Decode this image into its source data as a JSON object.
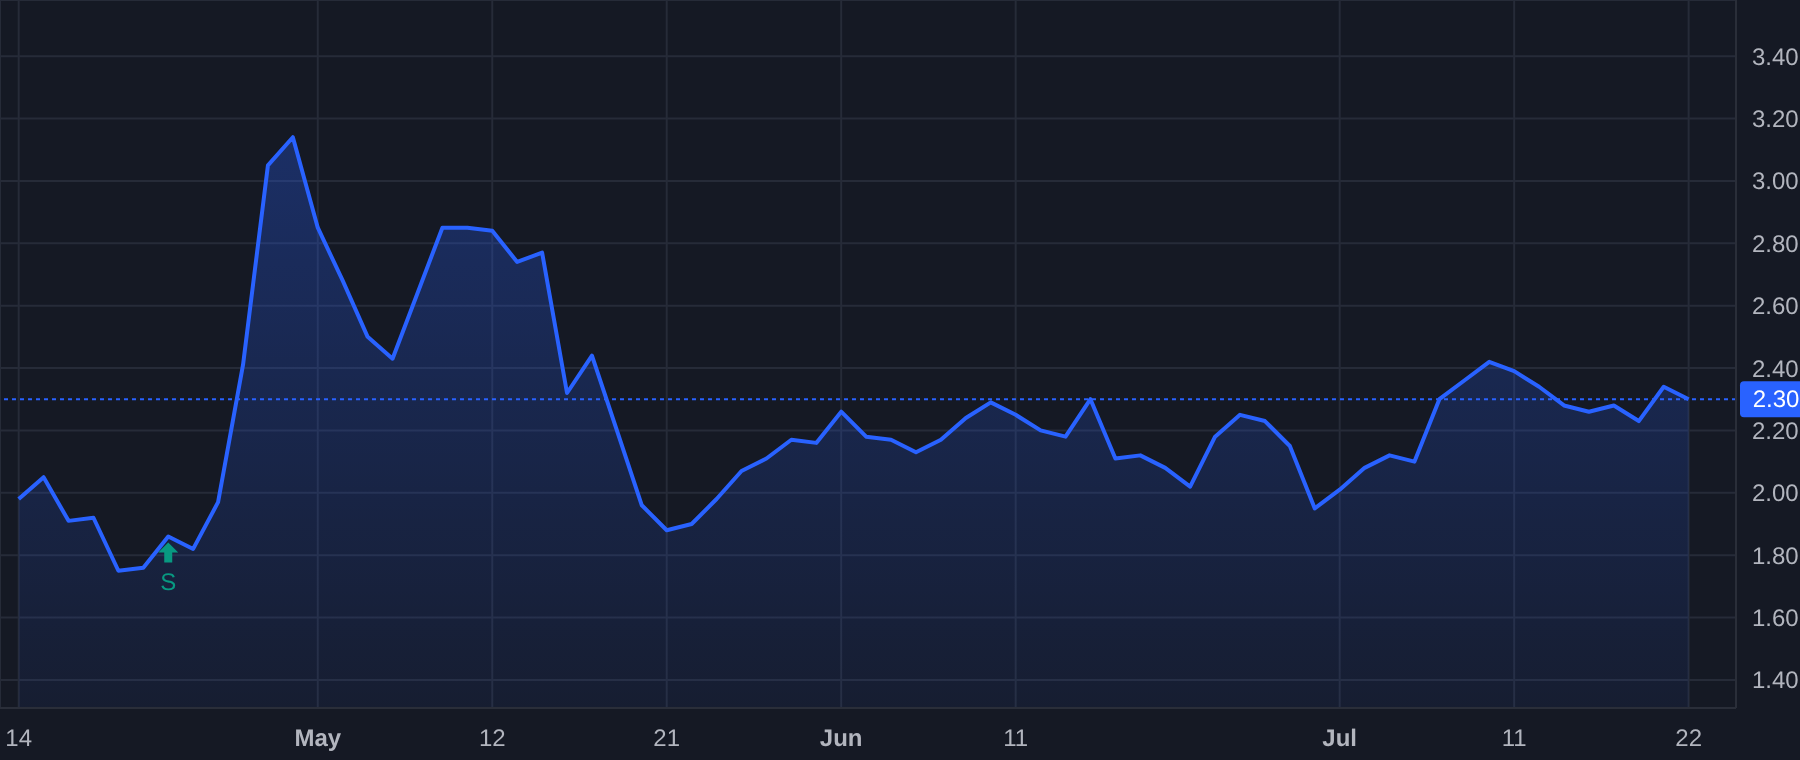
{
  "chart_data": {
    "type": "area",
    "categories": [
      "14",
      null,
      null,
      null,
      null,
      null,
      null,
      null,
      null,
      null,
      null,
      null,
      "May",
      null,
      null,
      null,
      null,
      null,
      null,
      "12",
      null,
      null,
      null,
      null,
      null,
      null,
      "21",
      null,
      null,
      null,
      null,
      null,
      null,
      "Jun",
      null,
      null,
      null,
      null,
      null,
      null,
      "11",
      null,
      null,
      null,
      null,
      null,
      null,
      null,
      null,
      null,
      null,
      null,
      null,
      "Jul",
      null,
      null,
      null,
      null,
      null,
      null,
      "11",
      null,
      null,
      null,
      null,
      null,
      null,
      "22"
    ],
    "series": [
      {
        "color": "#2962ff",
        "values": [
          1.98,
          2.05,
          1.91,
          1.92,
          1.75,
          1.76,
          1.86,
          1.82,
          1.97,
          2.41,
          3.05,
          3.14,
          2.85,
          2.68,
          2.5,
          2.43,
          2.64,
          2.85,
          2.85,
          2.84,
          2.74,
          2.77,
          2.32,
          2.44,
          2.2,
          1.96,
          1.88,
          1.9,
          1.98,
          2.07,
          2.11,
          2.17,
          2.16,
          2.26,
          2.18,
          2.17,
          2.13,
          2.17,
          2.24,
          2.29,
          2.25,
          2.2,
          2.18,
          2.3,
          2.11,
          2.12,
          2.08,
          2.02,
          2.18,
          2.25,
          2.23,
          2.15,
          1.95,
          2.01,
          2.08,
          2.12,
          2.1,
          2.3,
          2.36,
          2.42,
          2.39,
          2.34,
          2.28,
          2.26,
          2.28,
          2.23,
          2.34,
          2.3
        ]
      }
    ],
    "ylim": [
      1.31,
      3.58
    ],
    "yticks": [
      {
        "value": 1.4,
        "label": "1.40"
      },
      {
        "value": 1.6,
        "label": "1.60"
      },
      {
        "value": 1.8,
        "label": "1.80"
      },
      {
        "value": 2.0,
        "label": "2.00"
      },
      {
        "value": 2.2,
        "label": "2.20"
      },
      {
        "value": 2.4,
        "label": "2.40"
      },
      {
        "value": 2.6,
        "label": "2.60"
      },
      {
        "value": 2.8,
        "label": "2.80"
      },
      {
        "value": 3.0,
        "label": "3.00"
      },
      {
        "value": 3.2,
        "label": "3.20"
      },
      {
        "value": 3.4,
        "label": "3.40"
      }
    ],
    "ref_lines": [
      {
        "axis": "y",
        "value": 2.3,
        "label": "2.30",
        "color": "#2962ff",
        "line_style": "dotted"
      }
    ],
    "annotations": [
      {
        "text": "S",
        "y": 1.86
      }
    ],
    "grid": true,
    "marker": "none",
    "line_style": "solid"
  }
}
